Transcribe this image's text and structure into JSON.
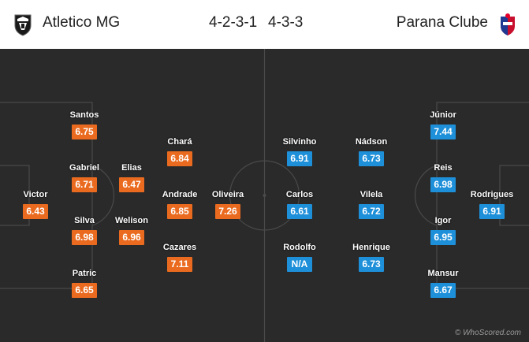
{
  "header": {
    "home_team": "Atletico MG",
    "home_formation": "4-2-3-1",
    "away_formation": "4-3-3",
    "away_team": "Parana Clube",
    "home_crest": "atletico-mg-crest-icon",
    "away_crest": "parana-clube-crest-icon"
  },
  "colors": {
    "home_rating": "#ea6b1f",
    "away_rating": "#1e8fd9",
    "pitch": "#2a2a2a",
    "pitch_lines": "#4a4a4a"
  },
  "home_players": [
    {
      "name": "Victor",
      "rating": "6.43"
    },
    {
      "name": "Santos",
      "rating": "6.75"
    },
    {
      "name": "Gabriel",
      "rating": "6.71"
    },
    {
      "name": "Silva",
      "rating": "6.98"
    },
    {
      "name": "Patric",
      "rating": "6.65"
    },
    {
      "name": "Elias",
      "rating": "6.47"
    },
    {
      "name": "Welison",
      "rating": "6.96"
    },
    {
      "name": "Chará",
      "rating": "6.84"
    },
    {
      "name": "Andrade",
      "rating": "6.85"
    },
    {
      "name": "Cazares",
      "rating": "7.11"
    },
    {
      "name": "Oliveira",
      "rating": "7.26"
    }
  ],
  "away_players": [
    {
      "name": "Rodrigues",
      "rating": "6.91"
    },
    {
      "name": "Júnior",
      "rating": "7.44"
    },
    {
      "name": "Reis",
      "rating": "6.98"
    },
    {
      "name": "Igor",
      "rating": "6.95"
    },
    {
      "name": "Mansur",
      "rating": "6.67"
    },
    {
      "name": "Nádson",
      "rating": "6.73"
    },
    {
      "name": "Vilela",
      "rating": "6.72"
    },
    {
      "name": "Henrique",
      "rating": "6.73"
    },
    {
      "name": "Silvinho",
      "rating": "6.91"
    },
    {
      "name": "Carlos",
      "rating": "6.61"
    },
    {
      "name": "Rodolfo",
      "rating": "N/A"
    }
  ],
  "watermark": "© WhoScored.com"
}
